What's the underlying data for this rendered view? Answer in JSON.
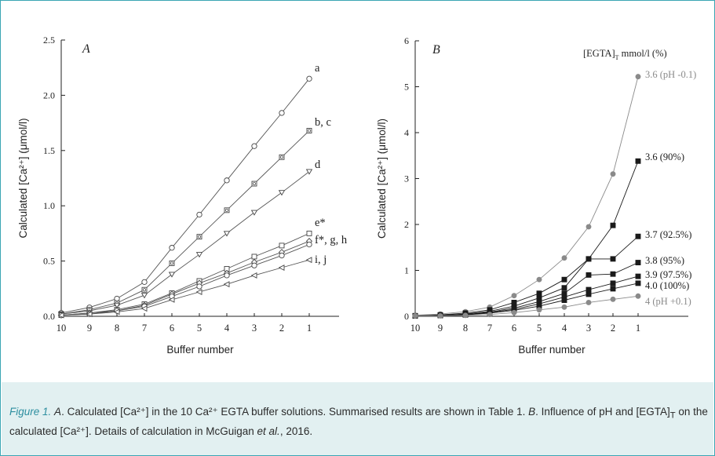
{
  "chart_data": [
    {
      "type": "line",
      "panel_label": "A",
      "xlabel": "Buffer number",
      "ylabel": "Calculated [Ca²⁺] (μmol/l)",
      "x": [
        10,
        9,
        8,
        7,
        6,
        5,
        4,
        3,
        2,
        1
      ],
      "x_ticks": [
        "10",
        "9",
        "8",
        "7",
        "6",
        "5",
        "4",
        "3",
        "2",
        "1"
      ],
      "ylim": [
        0,
        2.5
      ],
      "y_ticks": [
        "0.0",
        "0.5",
        "1.0",
        "1.5",
        "2.0",
        "2.5"
      ],
      "series": [
        {
          "name": "a",
          "marker": "circle",
          "values": [
            0.03,
            0.08,
            0.16,
            0.31,
            0.62,
            0.92,
            1.23,
            1.54,
            1.84,
            2.15
          ]
        },
        {
          "name": "b, c",
          "marker": "square-dot",
          "values": [
            0.02,
            0.06,
            0.12,
            0.24,
            0.48,
            0.72,
            0.96,
            1.2,
            1.44,
            1.68
          ]
        },
        {
          "name": "d",
          "marker": "triangle-down",
          "values": [
            0.02,
            0.05,
            0.1,
            0.19,
            0.38,
            0.56,
            0.75,
            0.94,
            1.12,
            1.31
          ]
        },
        {
          "name": "e*",
          "marker": "square",
          "values": [
            0.01,
            0.03,
            0.06,
            0.11,
            0.21,
            0.32,
            0.43,
            0.54,
            0.64,
            0.75
          ]
        },
        {
          "name": "f*, g, h",
          "marker": "diamond",
          "values": [
            0.01,
            0.03,
            0.05,
            0.1,
            0.2,
            0.3,
            0.39,
            0.49,
            0.58,
            0.68
          ]
        },
        {
          "name": "",
          "marker": "circle",
          "values": [
            0.01,
            0.02,
            0.05,
            0.09,
            0.18,
            0.27,
            0.37,
            0.46,
            0.55,
            0.65
          ]
        },
        {
          "name": "i, j",
          "marker": "triangle-left",
          "values": [
            0.01,
            0.02,
            0.04,
            0.07,
            0.15,
            0.22,
            0.29,
            0.37,
            0.44,
            0.51
          ]
        }
      ]
    },
    {
      "type": "line",
      "panel_label": "B",
      "legend_title": "[EGTA]",
      "legend_title_sub": "T",
      "legend_title_rest": " mmol/l (%)",
      "xlabel": "Buffer number",
      "ylabel": "Calculated [Ca²⁺] (μmol/l)",
      "x": [
        10,
        9,
        8,
        7,
        6,
        5,
        4,
        3,
        2,
        1
      ],
      "x_ticks": [
        "10",
        "9",
        "8",
        "7",
        "6",
        "5",
        "4",
        "3",
        "2",
        "1"
      ],
      "ylim": [
        0,
        6
      ],
      "y_ticks": [
        "0",
        "1",
        "2",
        "3",
        "4",
        "5",
        "6"
      ],
      "series": [
        {
          "name": "3.6 (pH -0.1)",
          "color": "#8a8a8a",
          "marker": "circle",
          "values": [
            0.02,
            0.05,
            0.1,
            0.2,
            0.45,
            0.8,
            1.27,
            1.95,
            3.1,
            5.22
          ]
        },
        {
          "name": "3.6 (90%)",
          "color": "#1a1a1a",
          "marker": "square",
          "values": [
            0.01,
            0.03,
            0.07,
            0.14,
            0.3,
            0.5,
            0.8,
            1.25,
            1.98,
            3.38
          ]
        },
        {
          "name": "3.7 (92.5%)",
          "color": "#1a1a1a",
          "marker": "square",
          "values": [
            0.01,
            0.02,
            0.05,
            0.11,
            0.22,
            0.4,
            0.62,
            1.25,
            1.25,
            1.74
          ]
        },
        {
          "name": "3.8 (95%)",
          "color": "#1a1a1a",
          "marker": "square",
          "values": [
            0.01,
            0.02,
            0.04,
            0.09,
            0.18,
            0.32,
            0.5,
            0.9,
            0.92,
            1.17
          ]
        },
        {
          "name": "3.9 (97.5%)",
          "color": "#1a1a1a",
          "marker": "square",
          "values": [
            0.01,
            0.02,
            0.04,
            0.08,
            0.15,
            0.27,
            0.42,
            0.58,
            0.72,
            0.87
          ]
        },
        {
          "name": "4.0 (100%)",
          "color": "#1a1a1a",
          "marker": "square",
          "values": [
            0.01,
            0.02,
            0.03,
            0.07,
            0.13,
            0.22,
            0.35,
            0.48,
            0.6,
            0.72
          ]
        },
        {
          "name": "4 (pH +0.1)",
          "color": "#8a8a8a",
          "marker": "circle",
          "values": [
            0.01,
            0.01,
            0.02,
            0.04,
            0.08,
            0.14,
            0.2,
            0.3,
            0.37,
            0.44
          ]
        }
      ]
    }
  ],
  "caption": {
    "figure_label": "Figure 1.",
    "a_label": "A",
    "text1": ". Calculated [Ca²⁺] in the 10 Ca²⁺ EGTA buffer solutions. Summarised results are shown in Table 1. ",
    "b_label": "B",
    "text2": ". Influence of pH and [EGTA]",
    "text2_sub": "T",
    "text3": " on the calculated [Ca²⁺]. Details of calculation in McGuigan ",
    "etal": "et al.",
    "text4": ", 2016."
  },
  "colors": {
    "frame": "#3aa6b4",
    "caption_bg": "#e2f0f1",
    "figure_label": "#2e8fa0",
    "axis": "#222222"
  }
}
